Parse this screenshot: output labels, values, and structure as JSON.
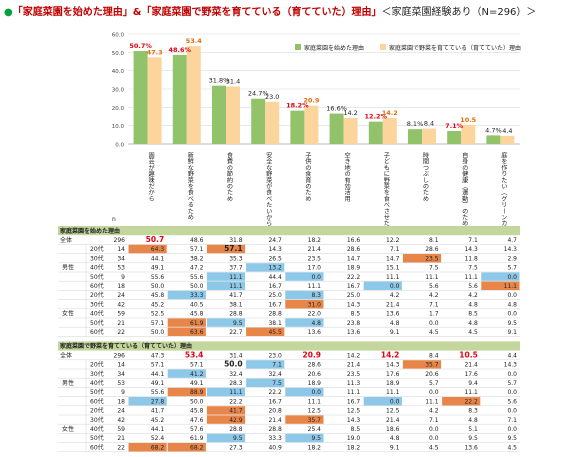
{
  "header": {
    "bullet": "●",
    "main": "「家庭菜園を始めた理由」&「家庭菜園で野菜を育てている（育てていた）理由」",
    "sub": "＜家庭菜園経験あり（N=296）＞"
  },
  "colors": {
    "series1": "#92c36a",
    "series2": "#fcd59c",
    "highlight_series1": "#e60012",
    "highlight_series2": "#e36c0a",
    "section_header": "#c3d69b",
    "cell_high_strong": "#f4a460",
    "cell_high": "#e8864a",
    "cell_low": "#8ec8e8",
    "cell_low_strong": "#4bacc6"
  },
  "chart_data": {
    "type": "bar",
    "ylim": [
      0,
      60
    ],
    "yticks": [
      "0.0",
      "10.0",
      "20.0",
      "30.0",
      "40.0",
      "50.0",
      "60.0"
    ],
    "categories": [
      "園芸が趣味だから",
      "新鮮な野菜を食べるため",
      "食費の節約のため",
      "安全な野菜が食べたいから",
      "子供の食育のため",
      "空き地の有効活用",
      "子どもに野菜を食べさせたいから",
      "時間つぶしのため",
      "自身の健康（運動）のため",
      "庭を作りたい（グリーンカーテンなど）"
    ],
    "series": [
      {
        "name": "家庭菜園を始めた理由",
        "values": [
          50.7,
          48.6,
          31.8,
          24.7,
          18.2,
          16.6,
          12.2,
          8.1,
          7.1,
          4.7
        ]
      },
      {
        "name": "家庭菜園で野菜を育てている（育てていた）理由",
        "values": [
          47.3,
          53.4,
          31.4,
          23.0,
          20.9,
          14.2,
          14.2,
          8.4,
          10.5,
          4.4
        ]
      }
    ],
    "value_labels_1": [
      "50.7%",
      "48.6%",
      "31.8%",
      "24.7%",
      "18.2%",
      "16.6%",
      "12.2%",
      "8.1%",
      "7.1%",
      "4.7%"
    ],
    "value_labels_2": [
      "47.3",
      "53.4",
      "31.4",
      "23.0",
      "20.9",
      "14.2",
      "14.2",
      "8.4",
      "10.5",
      "4.4"
    ],
    "highlighted": [
      true,
      true,
      false,
      false,
      true,
      false,
      true,
      false,
      true,
      false
    ]
  },
  "table_labels": {
    "n": "n",
    "total": "全体",
    "male": "男性",
    "female": "女性",
    "ages": [
      "20代",
      "30代",
      "40代",
      "50代",
      "60代"
    ]
  },
  "tables": [
    {
      "title": "家庭菜園を始めた理由",
      "rows": [
        {
          "n": 296,
          "v": [
            50.7,
            48.6,
            31.8,
            24.7,
            18.2,
            16.6,
            12.2,
            8.1,
            7.1,
            4.7
          ]
        },
        {
          "n": 14,
          "v": [
            64.3,
            57.1,
            57.1,
            14.3,
            21.4,
            28.6,
            7.1,
            28.6,
            14.3,
            14.3
          ]
        },
        {
          "n": 34,
          "v": [
            44.1,
            38.2,
            35.3,
            26.5,
            23.5,
            14.7,
            14.7,
            23.5,
            11.8,
            2.9
          ]
        },
        {
          "n": 53,
          "v": [
            49.1,
            47.2,
            37.7,
            13.2,
            17.0,
            18.9,
            15.1,
            7.5,
            7.5,
            5.7
          ]
        },
        {
          "n": 9,
          "v": [
            55.6,
            55.6,
            11.1,
            44.4,
            0.0,
            22.2,
            11.1,
            11.1,
            11.1,
            0.0
          ]
        },
        {
          "n": 18,
          "v": [
            50.0,
            50.0,
            11.1,
            16.7,
            11.1,
            16.7,
            0.0,
            5.6,
            5.6,
            11.1
          ]
        },
        {
          "n": 24,
          "v": [
            45.8,
            33.3,
            41.7,
            25.0,
            8.3,
            25.0,
            4.2,
            4.2,
            4.2,
            0.0
          ]
        },
        {
          "n": 42,
          "v": [
            45.2,
            40.5,
            38.1,
            16.7,
            31.0,
            14.3,
            21.4,
            7.1,
            4.8,
            4.8
          ]
        },
        {
          "n": 59,
          "v": [
            52.5,
            45.8,
            28.8,
            28.8,
            22.0,
            8.5,
            13.6,
            1.7,
            8.5,
            0.0
          ]
        },
        {
          "n": 21,
          "v": [
            57.1,
            61.9,
            9.5,
            38.1,
            4.8,
            23.8,
            4.8,
            0.0,
            4.8,
            9.5
          ]
        },
        {
          "n": 22,
          "v": [
            50.0,
            63.6,
            22.7,
            45.5,
            13.6,
            13.6,
            9.1,
            4.5,
            4.5,
            9.1
          ]
        }
      ],
      "cells": [
        [
          "",
          "",
          "",
          "",
          "",
          "",
          "",
          "",
          "",
          ""
        ],
        [
          "H",
          "",
          "H",
          "",
          "",
          "",
          "",
          "",
          "",
          ""
        ],
        [
          "",
          "",
          "",
          "",
          "",
          "",
          "",
          "H",
          "",
          ""
        ],
        [
          "",
          "",
          "",
          "L",
          "",
          "",
          "",
          "",
          "",
          ""
        ],
        [
          "",
          "",
          "L",
          "",
          "L",
          "",
          "",
          "",
          "",
          "L"
        ],
        [
          "",
          "",
          "L",
          "",
          "",
          "",
          "L",
          "",
          "",
          "H"
        ],
        [
          "",
          "L",
          "",
          "",
          "L",
          "",
          "",
          "",
          "",
          ""
        ],
        [
          "",
          "",
          "",
          "",
          "H",
          "",
          "",
          "",
          "",
          ""
        ],
        [
          "",
          "",
          "",
          "",
          "",
          "",
          "",
          "",
          "",
          ""
        ],
        [
          "",
          "H",
          "L",
          "",
          "L",
          "",
          "",
          "",
          "",
          ""
        ],
        [
          "",
          "H",
          "",
          "H",
          "",
          "",
          "",
          "",
          "",
          ""
        ]
      ],
      "bold": [
        [
          true,
          false,
          false,
          false,
          false,
          false,
          false,
          false,
          false,
          false
        ],
        [
          false,
          false,
          true,
          false,
          false,
          false,
          false,
          false,
          false,
          false
        ]
      ]
    },
    {
      "title": "家庭菜園で野菜を育てている（育てていた）理由",
      "rows": [
        {
          "n": 296,
          "v": [
            47.3,
            53.4,
            31.4,
            23.0,
            20.9,
            14.2,
            14.2,
            8.4,
            10.5,
            4.4
          ]
        },
        {
          "n": 14,
          "v": [
            57.1,
            57.1,
            50.0,
            7.1,
            28.6,
            21.4,
            14.3,
            35.7,
            21.4,
            14.3
          ]
        },
        {
          "n": 34,
          "v": [
            44.1,
            41.2,
            32.4,
            32.4,
            20.6,
            23.5,
            17.6,
            20.6,
            17.6,
            0.0
          ]
        },
        {
          "n": 53,
          "v": [
            49.1,
            49.1,
            28.3,
            7.5,
            18.9,
            11.3,
            18.9,
            5.7,
            9.4,
            5.7
          ]
        },
        {
          "n": 9,
          "v": [
            55.6,
            88.9,
            11.1,
            22.2,
            0.0,
            11.1,
            11.1,
            0.0,
            11.1,
            0.0
          ]
        },
        {
          "n": 18,
          "v": [
            27.8,
            50.0,
            22.2,
            16.7,
            11.1,
            16.7,
            0.0,
            11.1,
            22.2,
            5.6
          ]
        },
        {
          "n": 24,
          "v": [
            41.7,
            45.8,
            41.7,
            20.8,
            12.5,
            12.5,
            12.5,
            4.2,
            8.3,
            0.0
          ]
        },
        {
          "n": 42,
          "v": [
            45.2,
            47.6,
            42.9,
            21.4,
            35.7,
            14.3,
            21.4,
            7.1,
            4.8,
            7.1
          ]
        },
        {
          "n": 59,
          "v": [
            44.1,
            57.6,
            28.8,
            28.8,
            25.4,
            8.5,
            18.6,
            0.0,
            5.1,
            0.0
          ]
        },
        {
          "n": 21,
          "v": [
            52.4,
            61.9,
            9.5,
            33.3,
            9.5,
            19.0,
            4.8,
            0.0,
            9.5,
            9.5
          ]
        },
        {
          "n": 22,
          "v": [
            68.2,
            68.2,
            27.3,
            40.9,
            18.2,
            18.2,
            9.1,
            4.5,
            13.6,
            4.5
          ]
        }
      ],
      "cells": [
        [
          "",
          "",
          "",
          "",
          "",
          "",
          "",
          "",
          "",
          ""
        ],
        [
          "",
          "",
          "",
          "L",
          "",
          "",
          "",
          "H",
          "",
          ""
        ],
        [
          "",
          "L",
          "",
          "",
          "",
          "",
          "",
          "",
          "",
          ""
        ],
        [
          "",
          "",
          "",
          "L",
          "",
          "",
          "",
          "",
          "",
          ""
        ],
        [
          "",
          "H",
          "L",
          "",
          "L",
          "",
          "",
          "",
          "",
          ""
        ],
        [
          "L",
          "",
          "",
          "",
          "",
          "",
          "L",
          "",
          "H",
          ""
        ],
        [
          "",
          "",
          "H",
          "",
          "",
          "",
          "",
          "",
          "",
          ""
        ],
        [
          "",
          "",
          "H",
          "",
          "H",
          "",
          "",
          "",
          "",
          ""
        ],
        [
          "",
          "",
          "",
          "",
          "",
          "",
          "",
          "",
          "",
          ""
        ],
        [
          "",
          "",
          "L",
          "",
          "L",
          "",
          "",
          "",
          "",
          ""
        ],
        [
          "H",
          "H",
          "",
          "",
          "",
          "",
          "",
          "",
          "",
          ""
        ]
      ],
      "bold": [
        [
          false,
          true,
          false,
          false,
          true,
          false,
          true,
          false,
          true,
          false
        ],
        [
          false,
          false,
          true,
          false,
          false,
          false,
          false,
          false,
          false,
          false
        ]
      ]
    }
  ]
}
